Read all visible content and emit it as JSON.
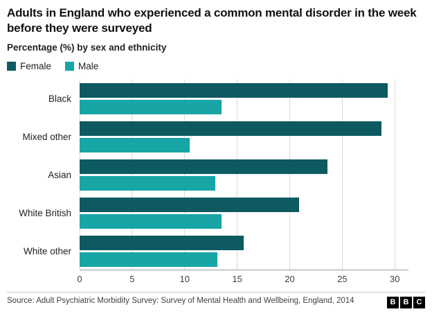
{
  "header": {
    "title": "Adults in England who experienced a common mental disorder in the week before they were surveyed",
    "subtitle": "Percentage (%) by sex and ethnicity"
  },
  "legend": [
    {
      "label": "Female",
      "color": "#0e5a61"
    },
    {
      "label": "Male",
      "color": "#18a5a5"
    }
  ],
  "chart_data": {
    "type": "bar",
    "orientation": "horizontal",
    "title": "Adults in England who experienced a common mental disorder in the week before they were surveyed",
    "subtitle": "Percentage (%) by sex and ethnicity",
    "categories": [
      "Black",
      "Mixed other",
      "Asian",
      "White British",
      "White other"
    ],
    "series": [
      {
        "name": "Female",
        "color": "#0e5a61",
        "values": [
          29.3,
          28.7,
          23.6,
          20.9,
          15.6
        ]
      },
      {
        "name": "Male",
        "color": "#18a5a5",
        "values": [
          13.5,
          10.5,
          12.9,
          13.5,
          13.1
        ]
      }
    ],
    "xlabel": "",
    "ylabel": "",
    "xlim": [
      0,
      31.3
    ],
    "xticks": [
      0,
      5,
      10,
      15,
      20,
      25,
      30
    ],
    "grid": true,
    "legend_position": "top"
  },
  "footer": {
    "source": "Source: Adult Psychiatric Morbidity Survey: Survey of Mental Health and Wellbeing, England, 2014",
    "logo_letters": [
      "B",
      "B",
      "C"
    ]
  }
}
